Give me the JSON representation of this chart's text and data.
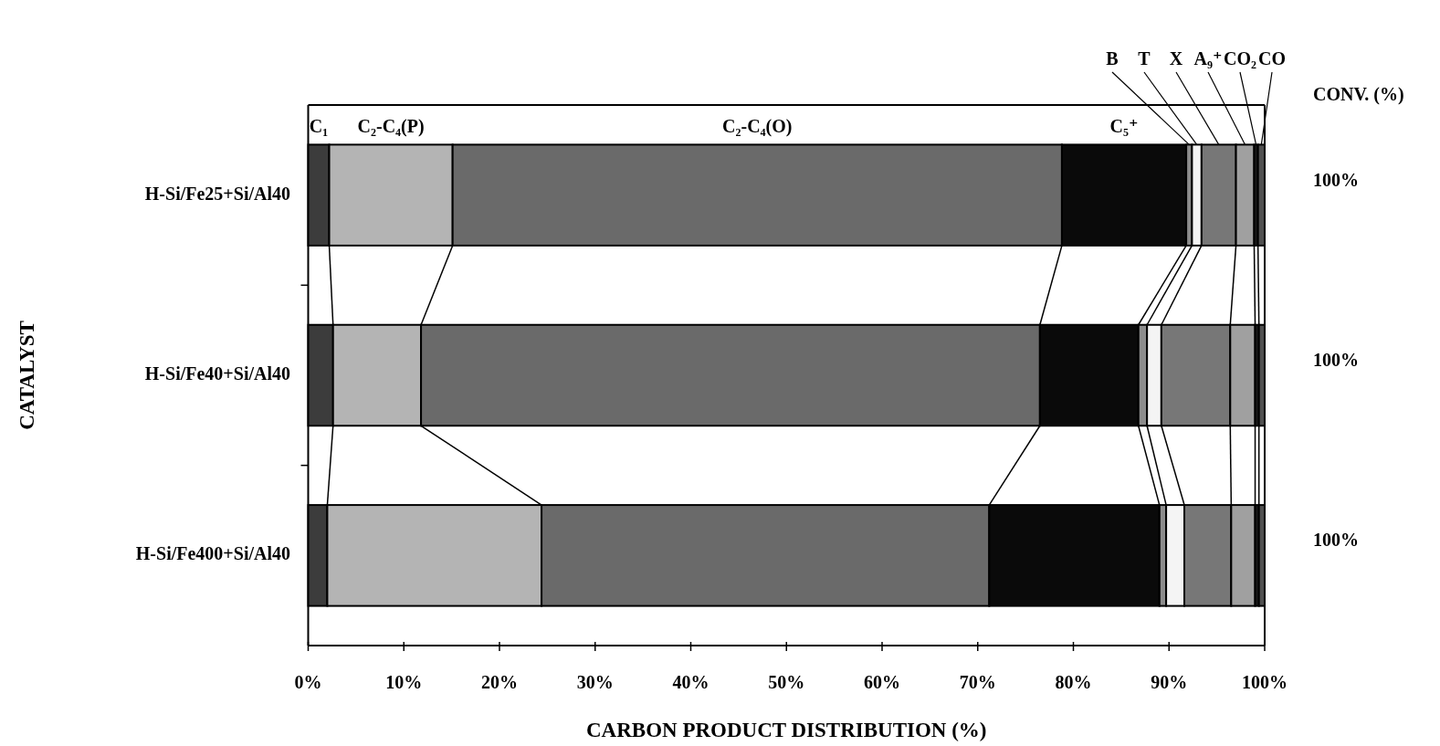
{
  "chart_data": {
    "type": "bar",
    "orientation": "horizontal",
    "stacked": true,
    "xlabel": "CARBON PRODUCT DISTRIBUTION (%)",
    "ylabel": "CATALYST",
    "categories": [
      "H-Si/Fe25+Si/Al40",
      "H-Si/Fe40+Si/Al40",
      "H-Si/Fe400+Si/Al40"
    ],
    "series": [
      {
        "name": "C₁",
        "color": "#3c3c3c",
        "values": [
          2.2,
          2.6,
          2.0
        ]
      },
      {
        "name": "C₂-C₄(P)",
        "color": "#b4b4b4",
        "values": [
          12.9,
          9.2,
          22.4
        ]
      },
      {
        "name": "C₂-C₄(O)",
        "color": "#6a6a6a",
        "values": [
          63.7,
          64.7,
          46.8
        ]
      },
      {
        "name": "C₅⁺",
        "color": "#0a0a0a",
        "values": [
          13.0,
          10.3,
          17.8
        ]
      },
      {
        "name": "B",
        "color": "#8c8c8c",
        "values": [
          0.6,
          0.9,
          0.7
        ]
      },
      {
        "name": "T",
        "color": "#f4f4f4",
        "values": [
          1.0,
          1.5,
          1.9
        ]
      },
      {
        "name": "X",
        "color": "#777777",
        "values": [
          3.6,
          7.2,
          4.9
        ]
      },
      {
        "name": "A₉⁺",
        "color": "#a0a0a0",
        "values": [
          1.9,
          2.6,
          2.5
        ]
      },
      {
        "name": "CO₂",
        "color": "#1a1a1a",
        "values": [
          0.4,
          0.4,
          0.4
        ]
      },
      {
        "name": "CO",
        "color": "#505050",
        "values": [
          0.7,
          0.6,
          0.6
        ]
      }
    ],
    "xlim": [
      0,
      100
    ],
    "xticks": [
      {
        "value": 0,
        "label": "0%"
      },
      {
        "value": 10,
        "label": "10%"
      },
      {
        "value": 20,
        "label": "20%"
      },
      {
        "value": 30,
        "label": "30%"
      },
      {
        "value": 40,
        "label": "40%"
      },
      {
        "value": 50,
        "label": "50%"
      },
      {
        "value": 60,
        "label": "60%"
      },
      {
        "value": 70,
        "label": "70%"
      },
      {
        "value": 80,
        "label": "80%"
      },
      {
        "value": 90,
        "label": "90%"
      },
      {
        "value": 100,
        "label": "100%"
      }
    ],
    "annotations": [
      "CONV. (%)",
      "100%",
      "100%",
      "100%"
    ]
  }
}
